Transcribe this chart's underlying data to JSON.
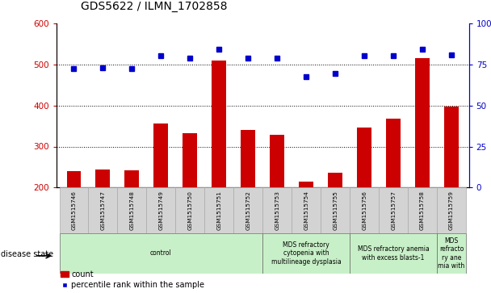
{
  "title": "GDS5622 / ILMN_1702858",
  "samples": [
    "GSM1515746",
    "GSM1515747",
    "GSM1515748",
    "GSM1515749",
    "GSM1515750",
    "GSM1515751",
    "GSM1515752",
    "GSM1515753",
    "GSM1515754",
    "GSM1515755",
    "GSM1515756",
    "GSM1515757",
    "GSM1515758",
    "GSM1515759"
  ],
  "counts": [
    240,
    244,
    241,
    356,
    332,
    510,
    340,
    328,
    215,
    237,
    347,
    367,
    515,
    398
  ],
  "percentile_ranks_pct": [
    72.5,
    72.75,
    72.5,
    80.5,
    79.0,
    84.5,
    78.75,
    79.0,
    67.75,
    69.75,
    80.25,
    80.25,
    84.25,
    81.0
  ],
  "bar_color": "#cc0000",
  "dot_color": "#0000cc",
  "ylim_left": [
    200,
    600
  ],
  "ylim_right": [
    0,
    100
  ],
  "yticks_left": [
    200,
    300,
    400,
    500,
    600
  ],
  "yticks_right": [
    0,
    25,
    50,
    75,
    100
  ],
  "group_boundaries": [
    {
      "start": 0,
      "end": 6,
      "label": "control"
    },
    {
      "start": 7,
      "end": 9,
      "label": "MDS refractory\ncytopenia with\nmultilineage dysplasia"
    },
    {
      "start": 10,
      "end": 12,
      "label": "MDS refractory anemia\nwith excess blasts-1"
    },
    {
      "start": 13,
      "end": 13,
      "label": "MDS\nrefracto\nry ane\nmia with"
    }
  ],
  "disease_state_label": "disease state",
  "legend_count_label": "count",
  "legend_percentile_label": "percentile rank within the sample",
  "box_color": "#d3d3d3",
  "disease_color": "#c8f0c8",
  "bar_width": 0.5
}
